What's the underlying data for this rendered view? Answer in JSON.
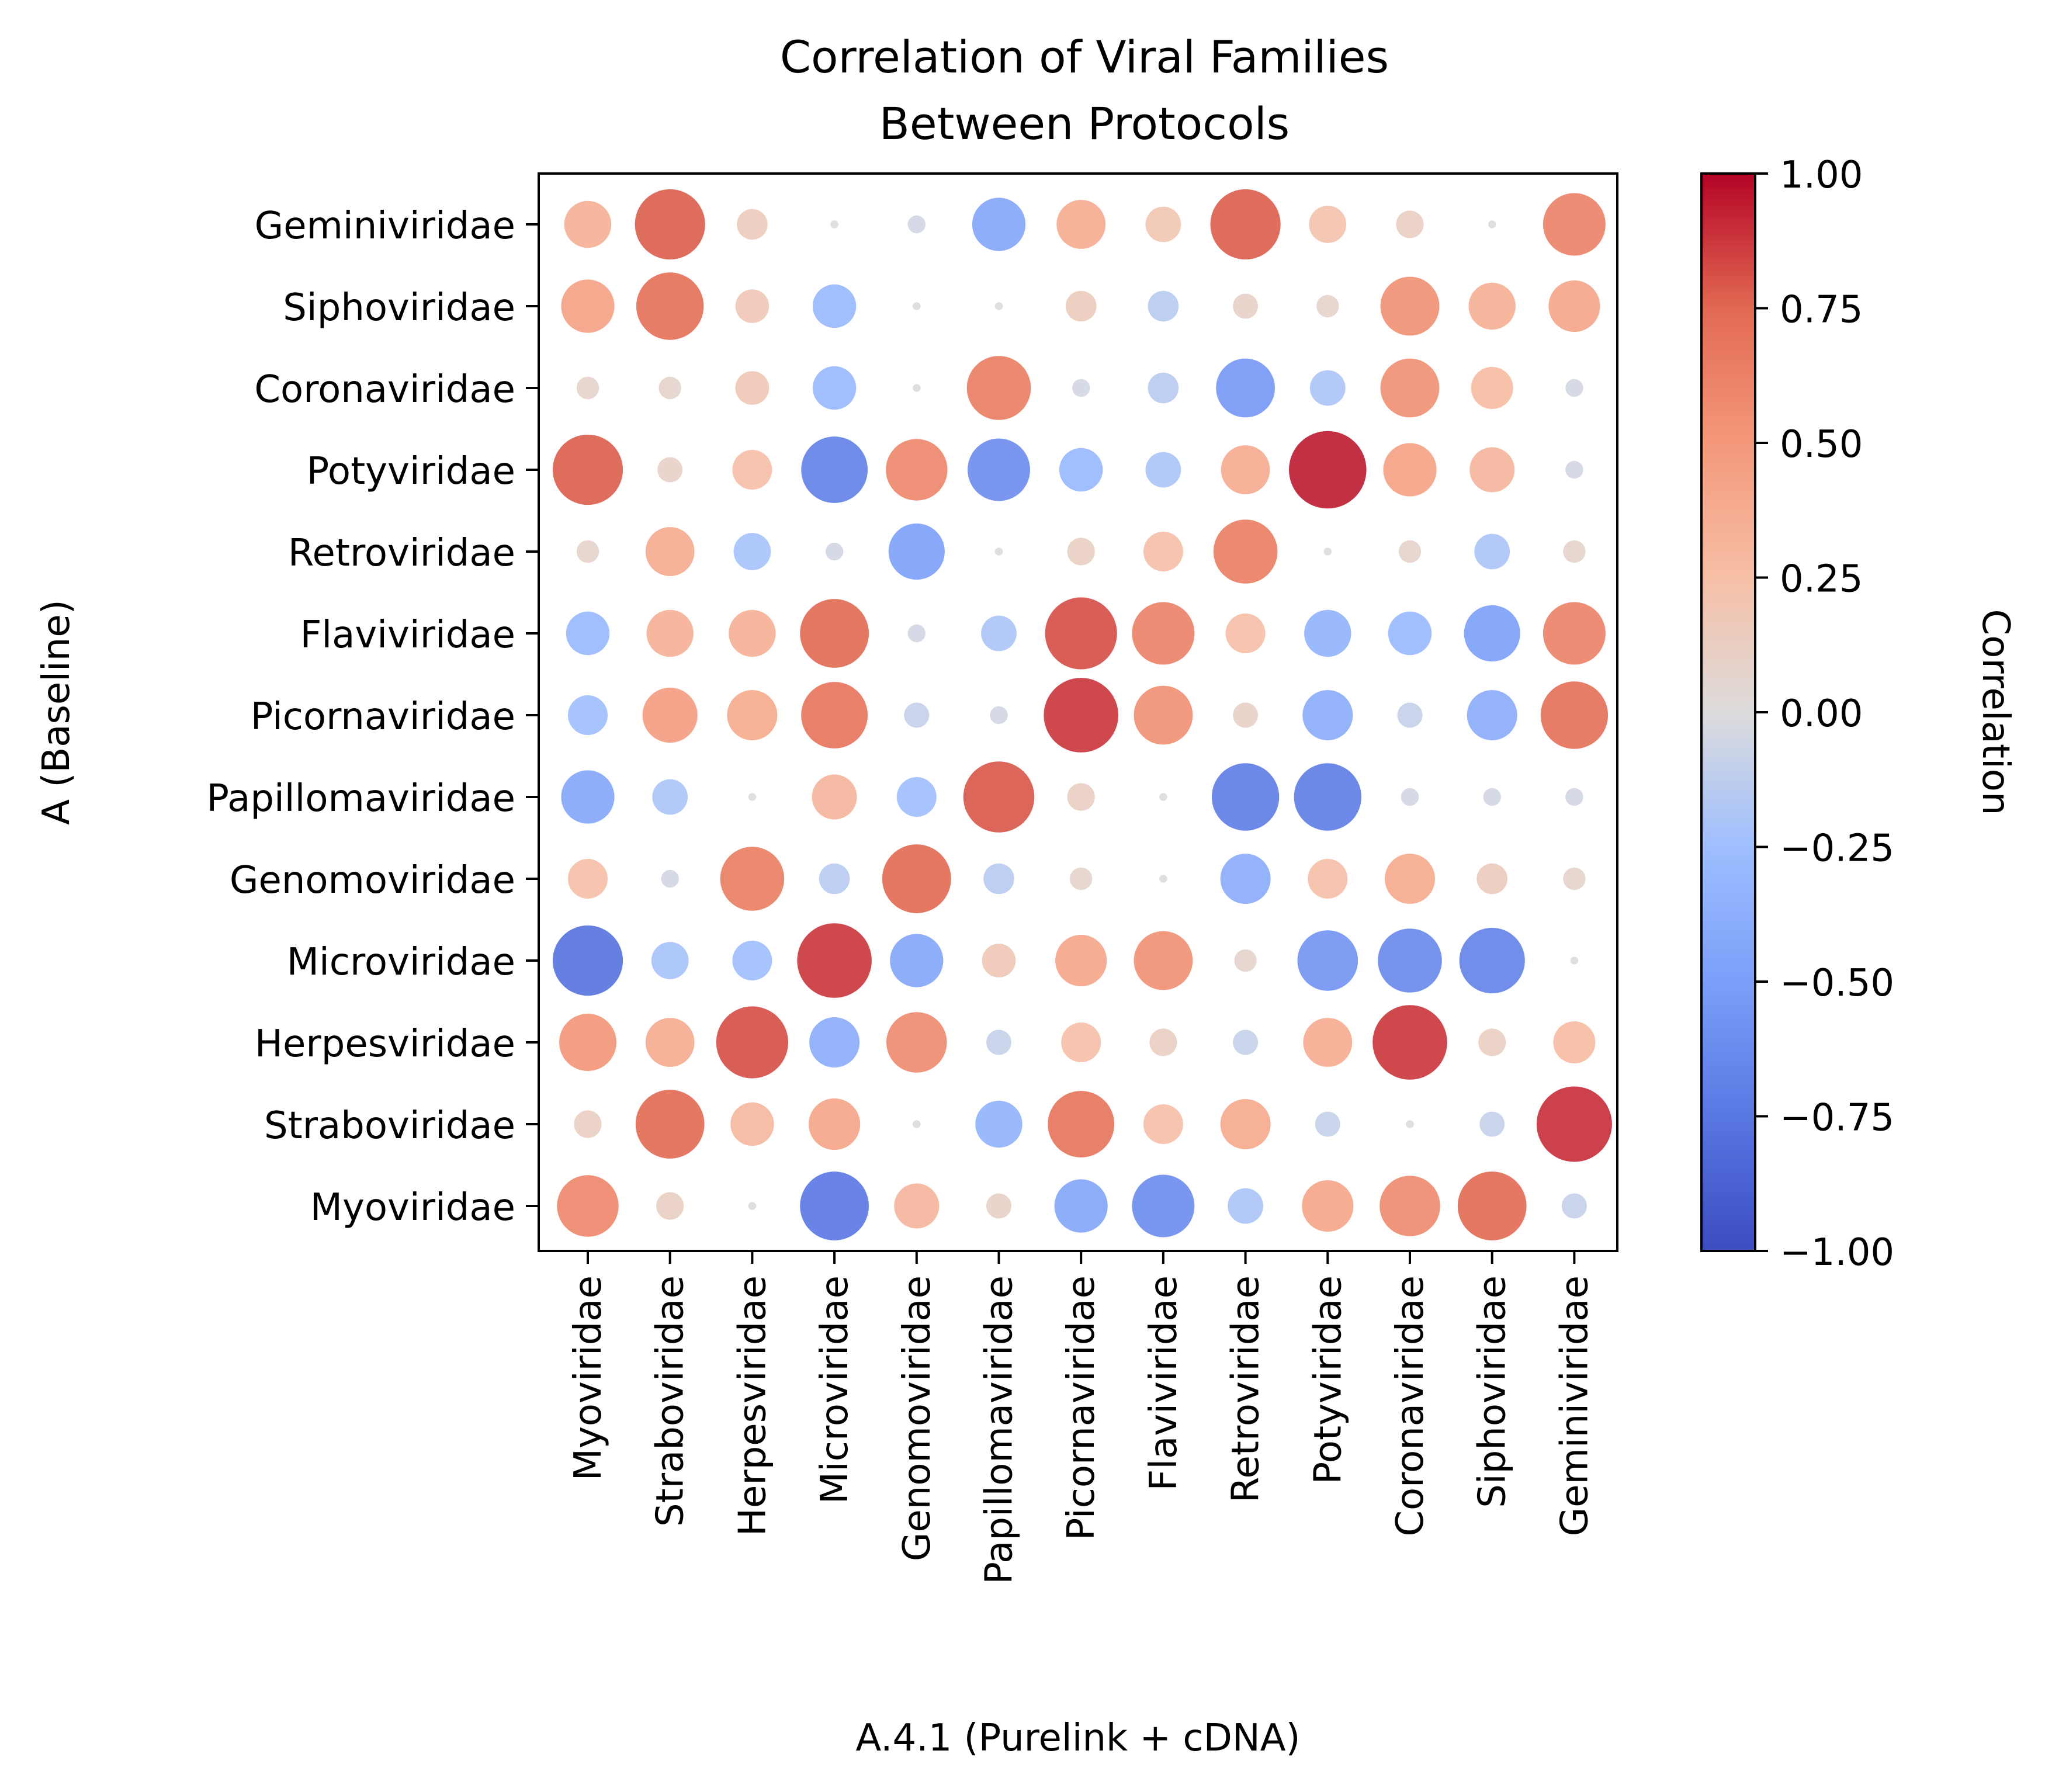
{
  "chart_data": {
    "type": "heatmap",
    "title_lines": [
      "Correlation of Viral Families",
      "Between Protocols"
    ],
    "xlabel": "A.4.1 (Purelink + cDNA)",
    "ylabel": "A (Baseline)",
    "x_categories": [
      "Myoviridae",
      "Straboviridae",
      "Herpesviridae",
      "Microviridae",
      "Genomoviridae",
      "Papillomaviridae",
      "Picornaviridae",
      "Flaviviridae",
      "Retroviridae",
      "Potyviridae",
      "Coronaviridae",
      "Siphoviridae",
      "Geminiviridae"
    ],
    "y_categories": [
      "Geminiviridae",
      "Siphoviridae",
      "Coronaviridae",
      "Potyviridae",
      "Retroviridae",
      "Flaviviridae",
      "Picornaviridae",
      "Papillomaviridae",
      "Genomoviridae",
      "Microviridae",
      "Herpesviridae",
      "Straboviridae",
      "Myoviridae"
    ],
    "values": [
      [
        0.35,
        0.78,
        0.15,
        0.01,
        -0.05,
        -0.45,
        0.38,
        0.2,
        0.78,
        0.22,
        0.12,
        0.01,
        0.62
      ],
      [
        0.45,
        0.72,
        0.18,
        -0.3,
        -0.01,
        -0.01,
        0.15,
        -0.15,
        0.1,
        0.08,
        0.55,
        0.35,
        0.42
      ],
      [
        0.08,
        0.08,
        0.18,
        -0.3,
        -0.01,
        0.65,
        -0.05,
        -0.15,
        -0.55,
        -0.2,
        0.55,
        0.28,
        -0.05
      ],
      [
        0.78,
        0.1,
        0.25,
        -0.7,
        0.6,
        -0.62,
        -0.3,
        -0.2,
        0.38,
        0.95,
        0.45,
        0.32,
        -0.05
      ],
      [
        0.08,
        0.38,
        -0.22,
        -0.05,
        -0.5,
        -0.01,
        0.12,
        0.25,
        0.65,
        0.01,
        0.08,
        -0.2,
        0.08
      ],
      [
        -0.3,
        0.35,
        0.35,
        0.75,
        -0.05,
        -0.2,
        0.82,
        0.62,
        0.25,
        -0.35,
        -0.3,
        -0.5,
        0.62
      ],
      [
        -0.25,
        0.48,
        0.4,
        0.7,
        -0.1,
        -0.05,
        0.88,
        0.55,
        0.1,
        -0.4,
        -0.1,
        -0.4,
        0.72
      ],
      [
        -0.45,
        -0.2,
        0.01,
        0.32,
        -0.25,
        0.8,
        0.12,
        0.01,
        -0.72,
        -0.72,
        -0.05,
        -0.05,
        -0.05
      ],
      [
        0.25,
        -0.05,
        0.65,
        -0.15,
        0.75,
        -0.15,
        0.08,
        0.01,
        -0.4,
        0.25,
        0.4,
        0.15,
        0.08
      ],
      [
        -0.78,
        -0.22,
        -0.25,
        0.88,
        -0.45,
        0.18,
        0.42,
        0.55,
        0.08,
        -0.58,
        -0.65,
        -0.68,
        0.01
      ],
      [
        0.52,
        0.38,
        0.82,
        -0.4,
        0.58,
        -0.1,
        0.25,
        0.12,
        -0.1,
        0.38,
        0.88,
        0.12,
        0.28
      ],
      [
        0.12,
        0.75,
        0.3,
        0.42,
        0.01,
        -0.35,
        0.7,
        0.25,
        0.4,
        -0.1,
        0.01,
        -0.1,
        0.9
      ],
      [
        0.6,
        0.12,
        0.01,
        -0.75,
        0.32,
        0.1,
        -0.45,
        -0.62,
        -0.2,
        0.42,
        0.58,
        0.75,
        -0.1
      ]
    ],
    "marker_size_encodes": "absolute correlation",
    "vmin": -1,
    "vmax": 1,
    "colormap": "coolwarm",
    "colorbar": {
      "label": "Correlation",
      "ticks": [
        1.0,
        0.75,
        0.5,
        0.25,
        0.0,
        -0.25,
        -0.5,
        -0.75,
        -1.0
      ],
      "tick_labels": [
        "1.00",
        "0.75",
        "0.50",
        "0.25",
        "0.00",
        "−0.25",
        "−0.50",
        "−0.75",
        "−1.00"
      ]
    },
    "grid": false
  }
}
